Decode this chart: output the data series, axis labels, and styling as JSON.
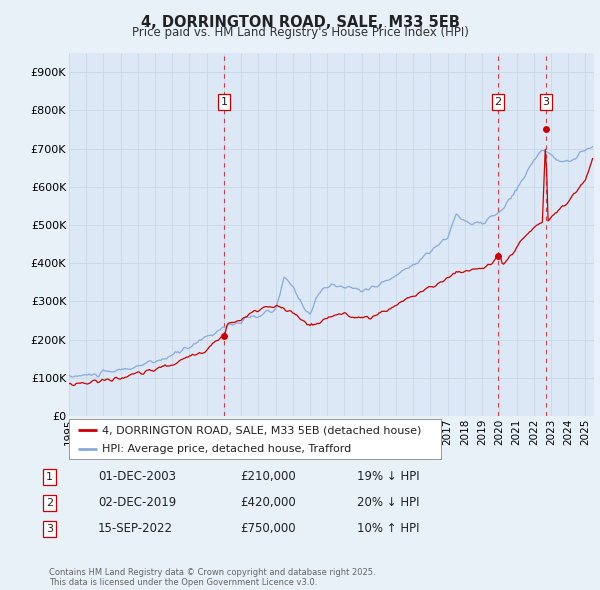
{
  "title": "4, DORRINGTON ROAD, SALE, M33 5EB",
  "subtitle": "Price paid vs. HM Land Registry's House Price Index (HPI)",
  "background_color": "#e8f0f8",
  "plot_bg_color": "#dce8f5",
  "grid_color": "#c8d8e8",
  "legend1": "4, DORRINGTON ROAD, SALE, M33 5EB (detached house)",
  "legend2": "HPI: Average price, detached house, Trafford",
  "footer": "Contains HM Land Registry data © Crown copyright and database right 2025.\nThis data is licensed under the Open Government Licence v3.0.",
  "sale_color": "#cc0000",
  "hpi_color": "#88aadd",
  "vline_color": "#cc0000",
  "annotations": [
    {
      "num": 1,
      "x_year": 2004.0,
      "price": 210000,
      "label": "01-DEC-2003",
      "amount": "£210,000",
      "relation": "19% ↓ HPI"
    },
    {
      "num": 2,
      "x_year": 2019.92,
      "price": 420000,
      "label": "02-DEC-2019",
      "amount": "£420,000",
      "relation": "20% ↓ HPI"
    },
    {
      "num": 3,
      "x_year": 2022.71,
      "price": 750000,
      "label": "15-SEP-2022",
      "amount": "£750,000",
      "relation": "10% ↑ HPI"
    }
  ],
  "ylim": [
    0,
    950000
  ],
  "xlim": [
    1995.0,
    2025.5
  ],
  "yticks": [
    0,
    100000,
    200000,
    300000,
    400000,
    500000,
    600000,
    700000,
    800000,
    900000
  ],
  "ytick_labels": [
    "£0",
    "£100K",
    "£200K",
    "£300K",
    "£400K",
    "£500K",
    "£600K",
    "£700K",
    "£800K",
    "£900K"
  ],
  "xticks": [
    1995,
    1996,
    1997,
    1998,
    1999,
    2000,
    2001,
    2002,
    2003,
    2004,
    2005,
    2006,
    2007,
    2008,
    2009,
    2010,
    2011,
    2012,
    2013,
    2014,
    2015,
    2016,
    2017,
    2018,
    2019,
    2020,
    2021,
    2022,
    2023,
    2024,
    2025
  ]
}
